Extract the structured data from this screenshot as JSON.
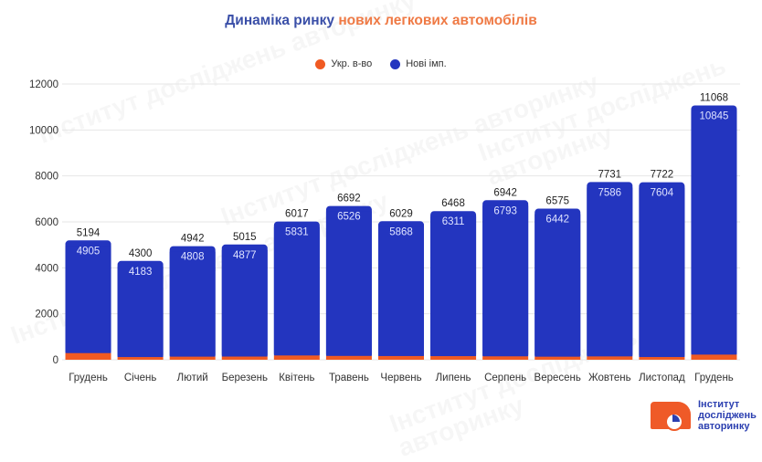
{
  "title": {
    "part1": "Динаміка ринку",
    "part2": "нових легкових автомобілів"
  },
  "legend": [
    {
      "label": "Укр. в-во",
      "color": "#f05a22"
    },
    {
      "label": "Нові імп.",
      "color": "#2335bf"
    }
  ],
  "logo": {
    "line1": "Інститут",
    "line2": "досліджень",
    "line3": "авторинку"
  },
  "watermark": "Інститут досліджень авторинку",
  "chart_data": {
    "type": "bar",
    "stacked": true,
    "title": "Динаміка ринку нових легкових автомобілів",
    "xlabel": "",
    "ylabel": "",
    "ylim": [
      0,
      12000
    ],
    "yticks": [
      0,
      2000,
      4000,
      6000,
      8000,
      10000,
      12000
    ],
    "grid": true,
    "legend_position": "top-center",
    "categories": [
      "Грудень",
      "Січень",
      "Лютий",
      "Березень",
      "Квітень",
      "Травень",
      "Червень",
      "Липень",
      "Серпень",
      "Вересень",
      "Жовтень",
      "Листопад",
      "Грудень"
    ],
    "series": [
      {
        "name": "Укр. в-во",
        "color": "#f05a22",
        "values": [
          289,
          117,
          134,
          138,
          186,
          166,
          161,
          157,
          149,
          133,
          145,
          118,
          223
        ]
      },
      {
        "name": "Нові імп.",
        "color": "#2335bf",
        "values": [
          4905,
          4183,
          4808,
          4877,
          5831,
          6526,
          5868,
          6311,
          6793,
          6442,
          7586,
          7604,
          10845
        ]
      }
    ],
    "totals": [
      5194,
      4300,
      4942,
      5015,
      6017,
      6692,
      6029,
      6468,
      6942,
      6575,
      7731,
      7722,
      11068
    ]
  }
}
